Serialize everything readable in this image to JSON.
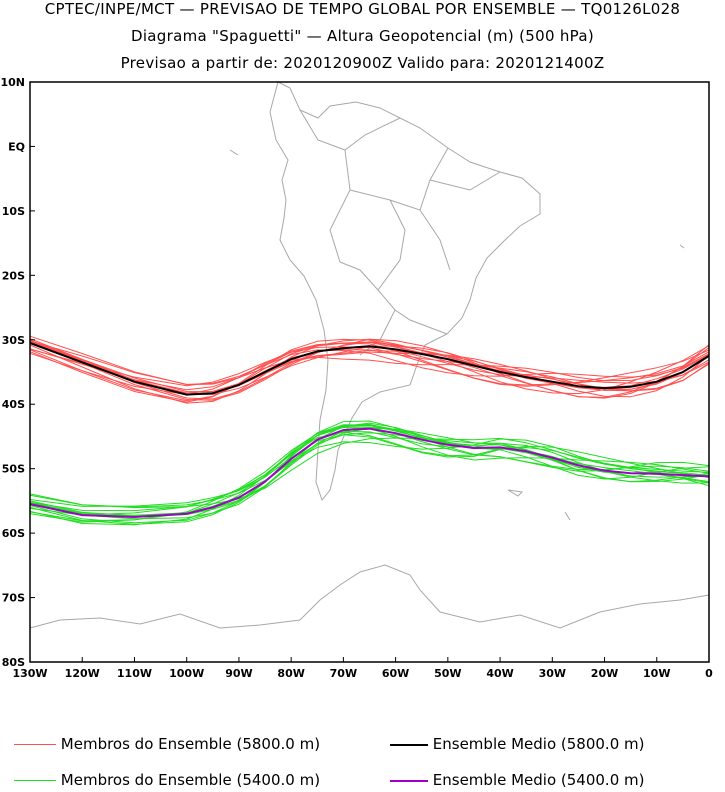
{
  "header": {
    "line1": "CPTEC/INPE/MCT — PREVISAO DE TEMPO GLOBAL POR ENSEMBLE — TQ0126L028",
    "line2": "Diagrama \"Spaguetti\" — Altura Geopotencial (m) (500 hPa)",
    "line3": "Previsao a partir de: 2020120900Z   Valido para: 2020121400Z"
  },
  "colors": {
    "member_5800": "#ff5050",
    "member_5400": "#22dd22",
    "mean_5800": "#000000",
    "mean_5400": "#a000c8",
    "coast": "#a8a8a8"
  },
  "legend": {
    "members_5800": "Membros do Ensemble (5800.0 m)",
    "mean_5800": "Ensemble Medio (5800.0 m)",
    "members_5400": "Membros do Ensemble (5400.0 m)",
    "mean_5400": "Ensemble Medio (5400.0 m)"
  },
  "chart_data": {
    "type": "line",
    "xlim": [
      -130,
      0
    ],
    "ylim": [
      -80,
      10
    ],
    "x_ticks": [
      "130W",
      "120W",
      "110W",
      "100W",
      "90W",
      "80W",
      "70W",
      "60W",
      "50W",
      "40W",
      "30W",
      "20W",
      "10W",
      "0"
    ],
    "y_ticks": [
      "10N",
      "EQ",
      "10S",
      "20S",
      "30S",
      "40S",
      "50S",
      "60S",
      "70S",
      "80S"
    ],
    "members_per_contour": 15,
    "series": [
      {
        "name": "Ensemble Medio (5800.0 m)",
        "x": [
          -130,
          -120,
          -110,
          -100,
          -95,
          -90,
          -85,
          -80,
          -75,
          -70,
          -65,
          -60,
          -55,
          -50,
          -45,
          -40,
          -35,
          -30,
          -25,
          -20,
          -15,
          -10,
          -5,
          0
        ],
        "y": [
          -30.5,
          -33.5,
          -36.5,
          -38.5,
          -38.3,
          -37.0,
          -35.0,
          -33.0,
          -31.8,
          -31.3,
          -31.0,
          -31.5,
          -32.2,
          -33.0,
          -34.0,
          -35.0,
          -35.8,
          -36.5,
          -37.2,
          -37.5,
          -37.3,
          -36.5,
          -35.0,
          -32.5
        ]
      },
      {
        "name": "Ensemble Medio (5400.0 m)",
        "x": [
          -130,
          -120,
          -110,
          -100,
          -95,
          -90,
          -85,
          -80,
          -75,
          -70,
          -65,
          -60,
          -55,
          -50,
          -45,
          -40,
          -35,
          -30,
          -25,
          -20,
          -15,
          -10,
          -5,
          0
        ],
        "y": [
          -55.5,
          -57.2,
          -57.5,
          -57.0,
          -56.0,
          -54.5,
          -52.0,
          -48.5,
          -45.5,
          -44.0,
          -43.8,
          -44.5,
          -45.5,
          -46.3,
          -46.8,
          -46.7,
          -47.3,
          -48.3,
          -49.5,
          -50.3,
          -50.7,
          -50.8,
          -51.0,
          -51.2
        ]
      }
    ]
  }
}
